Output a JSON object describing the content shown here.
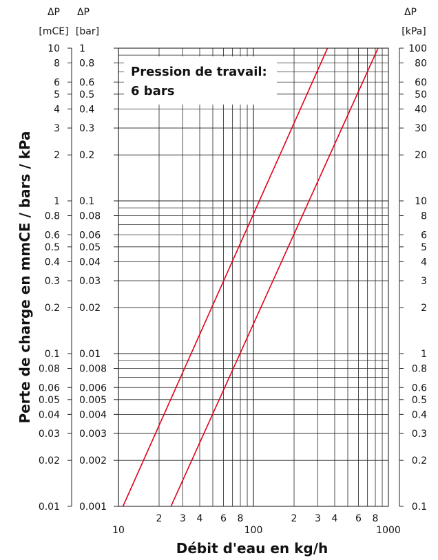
{
  "chart_data": {
    "type": "line",
    "x_scale": "log",
    "y_scale": "log",
    "xlim": [
      10,
      1000
    ],
    "ylim_bar": [
      0.001,
      1
    ],
    "grid": true,
    "xlabel": "Débit d'eau en kg/h",
    "ylabel": "Perte de charge en mmCE / bars / kPa",
    "annotation": [
      "Pression de travail:",
      "6 bars"
    ],
    "left_axis_1": {
      "symbol": "ΔP",
      "unit": "[mCE]",
      "ticks": [
        {
          "value": 10,
          "label": "10"
        },
        {
          "value": 8,
          "label": "8"
        },
        {
          "value": 6,
          "label": "6"
        },
        {
          "value": 5,
          "label": "5"
        },
        {
          "value": 4,
          "label": "4"
        },
        {
          "value": 3,
          "label": "3"
        },
        {
          "value": 2,
          "label": "2"
        },
        {
          "value": 1,
          "label": "1"
        },
        {
          "value": 0.8,
          "label": "0.8"
        },
        {
          "value": 0.6,
          "label": "0.6"
        },
        {
          "value": 0.5,
          "label": "0.5"
        },
        {
          "value": 0.4,
          "label": "0.4"
        },
        {
          "value": 0.3,
          "label": "0.3"
        },
        {
          "value": 0.2,
          "label": "0.2"
        },
        {
          "value": 0.1,
          "label": "0.1"
        },
        {
          "value": 0.08,
          "label": "0.08"
        },
        {
          "value": 0.06,
          "label": "0.06"
        },
        {
          "value": 0.05,
          "label": "0.05"
        },
        {
          "value": 0.04,
          "label": "0.04"
        },
        {
          "value": 0.03,
          "label": "0.03"
        },
        {
          "value": 0.02,
          "label": "0.02"
        },
        {
          "value": 0.01,
          "label": "0.01"
        }
      ]
    },
    "left_axis_2": {
      "symbol": "ΔP",
      "unit": "[bar]",
      "ticks": [
        {
          "value": 1,
          "label": "1"
        },
        {
          "value": 0.8,
          "label": "0.8"
        },
        {
          "value": 0.6,
          "label": "0.6"
        },
        {
          "value": 0.5,
          "label": "0.5"
        },
        {
          "value": 0.4,
          "label": "0.4"
        },
        {
          "value": 0.3,
          "label": "0.3"
        },
        {
          "value": 0.2,
          "label": "0.2"
        },
        {
          "value": 0.1,
          "label": "0.1"
        },
        {
          "value": 0.08,
          "label": "0.08"
        },
        {
          "value": 0.06,
          "label": "0.06"
        },
        {
          "value": 0.05,
          "label": "0.05"
        },
        {
          "value": 0.04,
          "label": "0.04"
        },
        {
          "value": 0.03,
          "label": "0.03"
        },
        {
          "value": 0.02,
          "label": "0.02"
        },
        {
          "value": 0.01,
          "label": "0.01"
        },
        {
          "value": 0.008,
          "label": "0.008"
        },
        {
          "value": 0.006,
          "label": "0.006"
        },
        {
          "value": 0.005,
          "label": "0.005"
        },
        {
          "value": 0.004,
          "label": "0.004"
        },
        {
          "value": 0.003,
          "label": "0.003"
        },
        {
          "value": 0.002,
          "label": "0.002"
        },
        {
          "value": 0.001,
          "label": "0.001"
        }
      ]
    },
    "right_axis": {
      "symbol": "ΔP",
      "unit": "[kPa]",
      "ticks": [
        {
          "value": 100,
          "label": "100"
        },
        {
          "value": 80,
          "label": "80"
        },
        {
          "value": 60,
          "label": "60"
        },
        {
          "value": 50,
          "label": "50"
        },
        {
          "value": 40,
          "label": "40"
        },
        {
          "value": 30,
          "label": "30"
        },
        {
          "value": 20,
          "label": "20"
        },
        {
          "value": 10,
          "label": "10"
        },
        {
          "value": 8,
          "label": "8"
        },
        {
          "value": 6,
          "label": "6"
        },
        {
          "value": 5,
          "label": "5"
        },
        {
          "value": 4,
          "label": "4"
        },
        {
          "value": 3,
          "label": "3"
        },
        {
          "value": 2,
          "label": "2"
        },
        {
          "value": 1,
          "label": "1"
        },
        {
          "value": 0.8,
          "label": "0.8"
        },
        {
          "value": 0.6,
          "label": "0.6"
        },
        {
          "value": 0.5,
          "label": "0.5"
        },
        {
          "value": 0.4,
          "label": "0.4"
        },
        {
          "value": 0.3,
          "label": "0.3"
        },
        {
          "value": 0.2,
          "label": "0.2"
        },
        {
          "value": 0.1,
          "label": "0.1"
        }
      ]
    },
    "x_ticks": [
      {
        "value": 10,
        "label": "10"
      },
      {
        "value": 20,
        "label": "2"
      },
      {
        "value": 30,
        "label": "3"
      },
      {
        "value": 40,
        "label": "4"
      },
      {
        "value": 60,
        "label": "6"
      },
      {
        "value": 80,
        "label": "8"
      },
      {
        "value": 100,
        "label": "100"
      },
      {
        "value": 200,
        "label": "2"
      },
      {
        "value": 300,
        "label": "3"
      },
      {
        "value": 400,
        "label": "4"
      },
      {
        "value": 600,
        "label": "6"
      },
      {
        "value": 800,
        "label": "8"
      },
      {
        "value": 1000,
        "label": "1000"
      }
    ],
    "series": [
      {
        "color": "#e2001a",
        "x": [
          10.8,
          354
        ],
        "y": [
          0.001,
          1
        ]
      },
      {
        "color": "#e2001a",
        "x": [
          24.5,
          838
        ],
        "y": [
          0.001,
          1
        ]
      }
    ]
  }
}
